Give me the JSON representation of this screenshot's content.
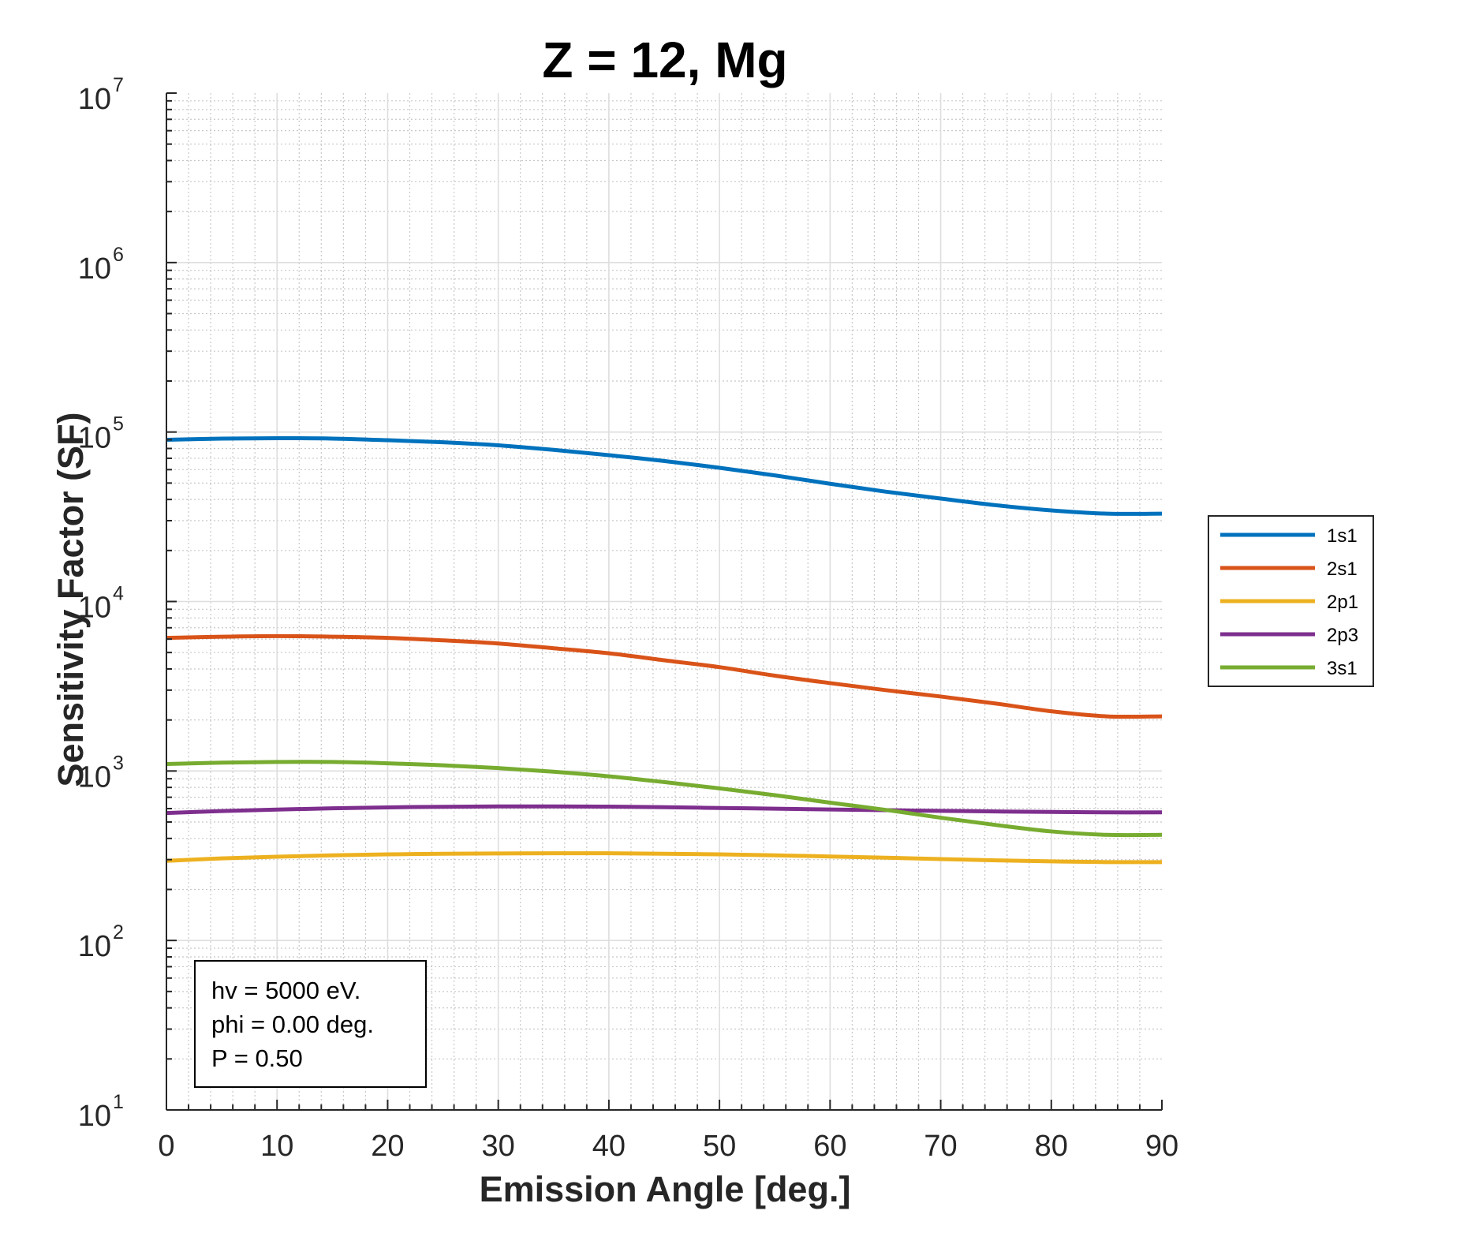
{
  "chart_data": {
    "type": "line",
    "title": "Z = 12, Mg",
    "xlabel": "Emission Angle [deg.]",
    "ylabel": "Sensitivity Factor (SF)",
    "xlim": [
      0,
      90
    ],
    "ylim": [
      10,
      10000000
    ],
    "yscale": "log",
    "grid": true,
    "minor_grid": true,
    "legend_position": "outside-right",
    "x_ticks": [
      "0",
      "10",
      "20",
      "30",
      "40",
      "50",
      "60",
      "70",
      "80",
      "90"
    ],
    "y_ticks": [
      {
        "base": "10",
        "exp": "1"
      },
      {
        "base": "10",
        "exp": "2"
      },
      {
        "base": "10",
        "exp": "3"
      },
      {
        "base": "10",
        "exp": "4"
      },
      {
        "base": "10",
        "exp": "5"
      },
      {
        "base": "10",
        "exp": "6"
      },
      {
        "base": "10",
        "exp": "7"
      }
    ],
    "x": [
      0,
      5,
      10,
      15,
      20,
      25,
      30,
      35,
      40,
      45,
      50,
      55,
      60,
      65,
      70,
      75,
      80,
      85,
      90
    ],
    "series": [
      {
        "name": "1s1",
        "color": "#0072BD",
        "values": [
          90000,
          91500,
          92000,
          91500,
          89500,
          87000,
          83500,
          78500,
          73000,
          67500,
          61500,
          55500,
          49500,
          44500,
          40500,
          37000,
          34500,
          33000,
          33000
        ]
      },
      {
        "name": "2s1",
        "color": "#D95319",
        "values": [
          6100,
          6200,
          6250,
          6200,
          6100,
          5900,
          5650,
          5300,
          4950,
          4500,
          4100,
          3650,
          3300,
          3000,
          2750,
          2500,
          2250,
          2100,
          2100
        ]
      },
      {
        "name": "2p1",
        "color": "#EDB120",
        "values": [
          295,
          305,
          312,
          318,
          322,
          325,
          326,
          327,
          327,
          325,
          322,
          318,
          313,
          308,
          302,
          297,
          293,
          290,
          290
        ]
      },
      {
        "name": "2p3",
        "color": "#7E2F8E",
        "values": [
          565,
          580,
          592,
          602,
          610,
          615,
          618,
          618,
          616,
          611,
          605,
          599,
          593,
          587,
          582,
          577,
          573,
          570,
          570
        ]
      },
      {
        "name": "3s1",
        "color": "#77AC30",
        "values": [
          1100,
          1120,
          1130,
          1130,
          1110,
          1080,
          1040,
          990,
          930,
          860,
          790,
          720,
          650,
          590,
          530,
          480,
          440,
          420,
          420
        ]
      }
    ],
    "annotation": [
      "hv = 5000 eV.",
      "phi = 0.00 deg.",
      "P = 0.50"
    ]
  }
}
